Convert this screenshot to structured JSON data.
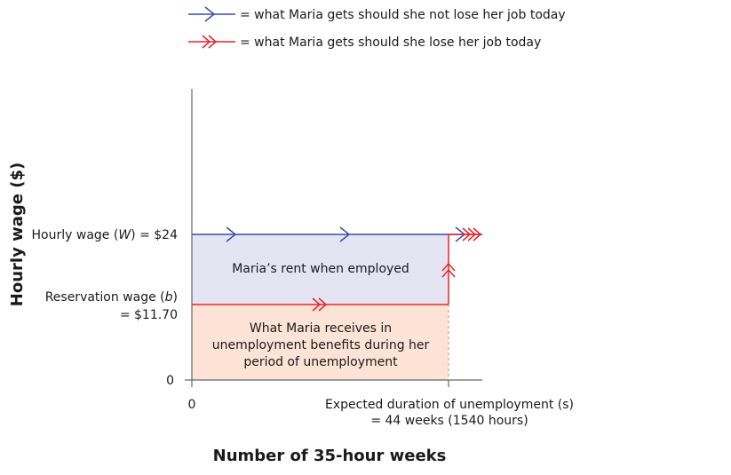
{
  "legend": {
    "blue_text": "= what Maria gets should she not lose her job today",
    "red_text": "= what Maria gets should she lose her job today"
  },
  "axes": {
    "ylabel": "Hourly wage ($)",
    "xlabel": "Number of 35-hour weeks",
    "y_zero": "0",
    "x_zero": "0"
  },
  "labels": {
    "wage_prefix": "Hourly wage (",
    "wage_var": "W",
    "wage_suffix": ") = $24",
    "reservation_prefix": "Reservation wage (",
    "reservation_var": "b",
    "reservation_suffix": ")",
    "reservation_value": "= $11.70",
    "duration_line1": "Expected duration of unemployment (s)",
    "duration_line2": "= 44 weeks (1540 hours)"
  },
  "regions": {
    "rent_text": "Maria’s rent when employed",
    "benefits_line1": "What Maria receives in",
    "benefits_line2": "unemployment benefits during her",
    "benefits_line3": "period of unemployment"
  },
  "colors": {
    "blue": "#3a4ea1",
    "red": "#e3262c",
    "rent_fill": "#e4e4f3",
    "benefits_fill": "#fce3d6",
    "axis": "#666666"
  }
}
